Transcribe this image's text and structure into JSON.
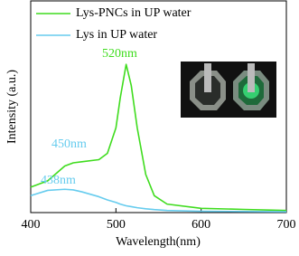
{
  "chart_data": {
    "type": "line",
    "x_label": "Wavelength(nm)",
    "y_label": "Intensity (a.u.)",
    "x": [
      400,
      420,
      440,
      450,
      460,
      480,
      490,
      500,
      505,
      512,
      518,
      525,
      535,
      545,
      560,
      600,
      650,
      700
    ],
    "series": [
      {
        "name": "Lys-PNCs in UP water",
        "color": "#3fdc1e",
        "values": [
          12,
          15,
          22,
          23.5,
          24,
          25,
          28,
          40,
          54,
          70,
          60,
          40,
          18,
          8,
          4,
          2,
          1.5,
          1
        ]
      },
      {
        "name": "Lys in UP water",
        "color": "#66ccee",
        "values": [
          8,
          10.5,
          11,
          10.7,
          9.8,
          7.5,
          6,
          4.8,
          4,
          3.2,
          2.8,
          2.3,
          1.8,
          1.4,
          1,
          0.6,
          0.5,
          0.4
        ]
      }
    ],
    "annotations": [
      {
        "text": "520nm",
        "color": "#3fdc1e"
      },
      {
        "text": "450nm",
        "color": "#66ccee"
      },
      {
        "text": "438nm",
        "color": "#66ccee"
      }
    ],
    "xlim": [
      400,
      700
    ],
    "xticks": [
      400,
      500,
      600,
      700
    ],
    "ylim": [
      0,
      100
    ],
    "yticks": []
  }
}
